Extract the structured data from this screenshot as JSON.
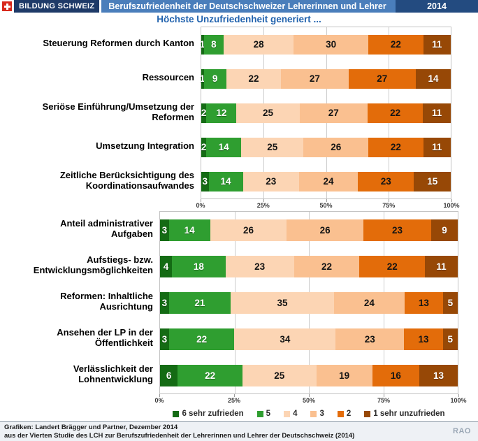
{
  "header": {
    "brand": "BILDUNG SCHWEIZ",
    "title": "Berufszufriedenheit der Deutschschweizer Lehrerinnen und Lehrer",
    "year": "2014"
  },
  "subtitle": "Höchste Unzufriedenheit generiert ...",
  "colors": {
    "brand_navy": "#1e3a68",
    "title_steel_blue": "#4a7ebb",
    "year_navy": "#234b80",
    "flag_red": "#d8291c",
    "subtitle_blue": "#2263ae"
  },
  "chart_data": [
    {
      "type": "bar",
      "stacked": true,
      "orientation": "horizontal",
      "title": "",
      "xlabel": "",
      "ylabel": "",
      "xlim": [
        0,
        100
      ],
      "x_ticks": [
        "0%",
        "25%",
        "50%",
        "75%",
        "100%"
      ],
      "grid": true,
      "legend_position": "none",
      "categories": [
        "Steuerung Reformen durch Kanton",
        "Ressourcen",
        "Seriöse Einführung/Umsetzung der Reformen",
        "Umsetzung Integration",
        "Zeitliche Berücksichtigung des Koordinationsaufwandes"
      ],
      "series": [
        {
          "name": "6 sehr zufrieden",
          "color": "#146b14",
          "values": [
            1,
            1,
            2,
            2,
            3
          ]
        },
        {
          "name": "5",
          "color": "#2f9e30",
          "values": [
            8,
            9,
            12,
            14,
            14
          ]
        },
        {
          "name": "4",
          "color": "#fcd5b4",
          "values": [
            28,
            22,
            25,
            25,
            23
          ]
        },
        {
          "name": "3",
          "color": "#fac090",
          "values": [
            30,
            27,
            27,
            26,
            24
          ]
        },
        {
          "name": "2",
          "color": "#e36c0a",
          "values": [
            22,
            27,
            22,
            22,
            23
          ]
        },
        {
          "name": "1 sehr unzufrieden",
          "color": "#974806",
          "values": [
            11,
            14,
            11,
            11,
            15
          ]
        }
      ]
    },
    {
      "type": "bar",
      "stacked": true,
      "orientation": "horizontal",
      "title": "",
      "xlabel": "",
      "ylabel": "",
      "xlim": [
        0,
        100
      ],
      "x_ticks": [
        "0%",
        "25%",
        "50%",
        "75%",
        "100%"
      ],
      "grid": true,
      "legend_position": "bottom",
      "categories": [
        "Anteil administrativer Aufgaben",
        "Aufstiegs- bzw. Entwicklungsmöglichkeiten",
        "Reformen: Inhaltliche Ausrichtung",
        "Ansehen der LP in der Öffentlichkeit",
        "Verlässlichkeit der Lohnentwicklung"
      ],
      "series": [
        {
          "name": "6 sehr zufrieden",
          "color": "#146b14",
          "values": [
            3,
            4,
            3,
            3,
            6
          ]
        },
        {
          "name": "5",
          "color": "#2f9e30",
          "values": [
            14,
            18,
            21,
            22,
            22
          ]
        },
        {
          "name": "4",
          "color": "#fcd5b4",
          "values": [
            26,
            23,
            35,
            34,
            25
          ]
        },
        {
          "name": "3",
          "color": "#fac090",
          "values": [
            26,
            22,
            24,
            23,
            19
          ]
        },
        {
          "name": "2",
          "color": "#e36c0a",
          "values": [
            23,
            22,
            13,
            13,
            16
          ]
        },
        {
          "name": "1 sehr unzufrieden",
          "color": "#974806",
          "values": [
            9,
            11,
            5,
            5,
            13
          ]
        }
      ]
    }
  ],
  "legend": [
    {
      "label": "6 sehr zufrieden",
      "color": "#146b14"
    },
    {
      "label": "5",
      "color": "#2f9e30"
    },
    {
      "label": "4",
      "color": "#fcd5b4"
    },
    {
      "label": "3",
      "color": "#fac090"
    },
    {
      "label": "2",
      "color": "#e36c0a"
    },
    {
      "label": "1 sehr unzufrieden",
      "color": "#974806"
    }
  ],
  "footer": {
    "line1": "Grafiken:  Landert Brägger und Partner, Dezember 2014",
    "line2": "aus der Vierten Studie des LCH zur Berufszufriedenheit der Lehrerinnen und Lehrer der Deutschschweiz (2014)",
    "watermark": "RAO"
  }
}
